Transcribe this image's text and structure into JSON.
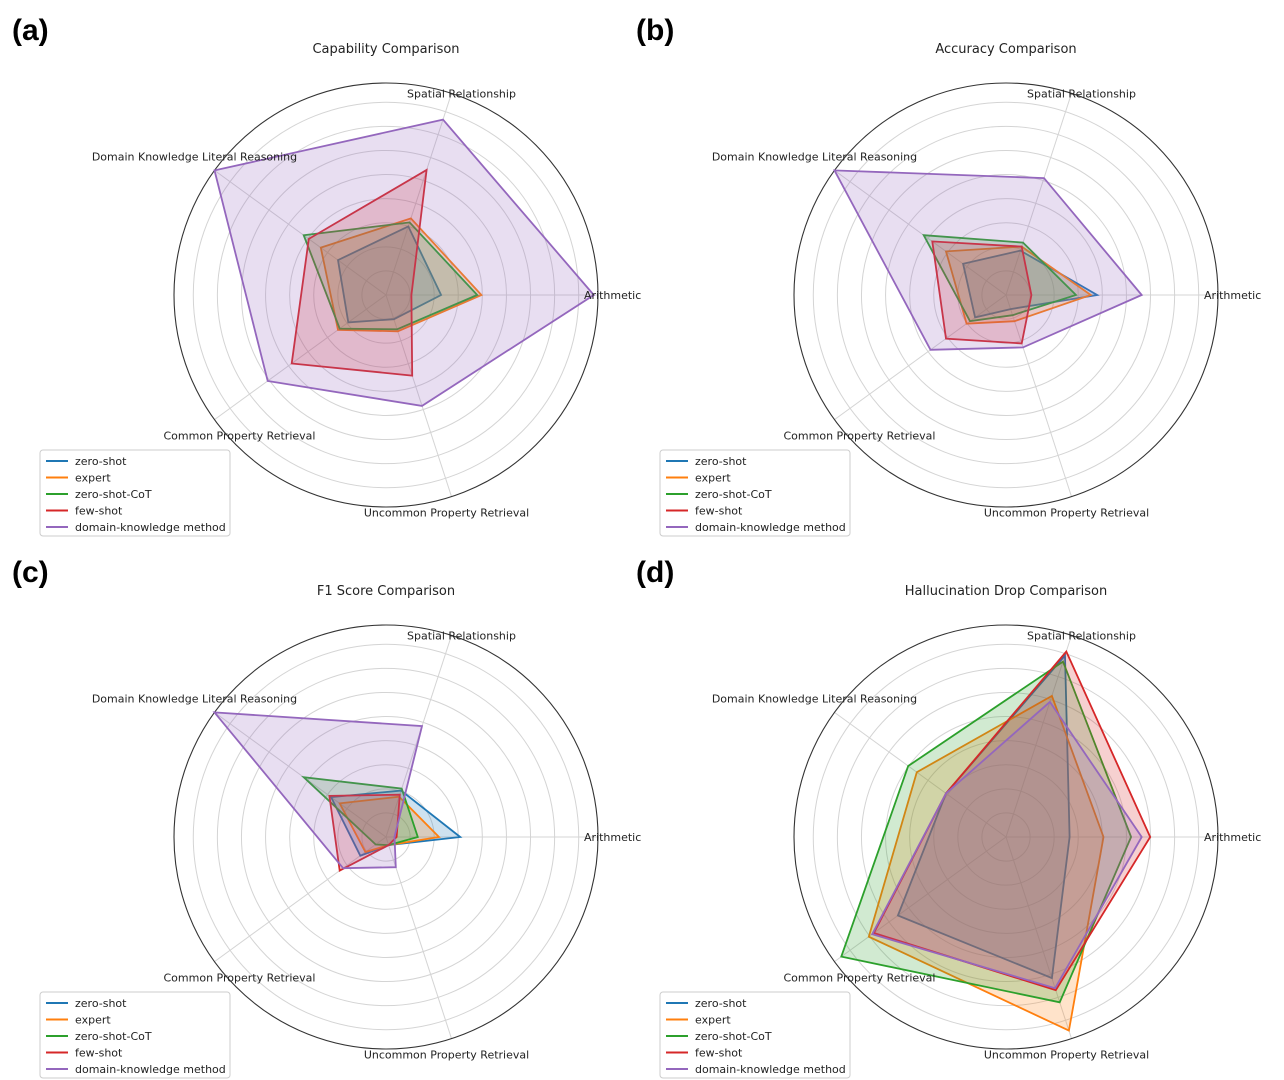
{
  "colors": {
    "zero-shot": "#1f77b4",
    "expert": "#ff7f0e",
    "zero-shot-CoT": "#2ca02c",
    "few-shot": "#d62728",
    "domain-knowledge method": "#9467bd"
  },
  "chart_data": [
    {
      "type": "radar",
      "panel_label": "(a)",
      "title": "Capability Comparison",
      "axes": [
        "Arithmetic",
        "Spatial Relationship",
        "Domain Knowledge Literal Reasoning",
        "Common Property Retrieval",
        "Uncommon Property Retrieval"
      ],
      "rlim": [
        0,
        1
      ],
      "grid": true,
      "legend_position": "lower-left",
      "series": [
        {
          "name": "zero-shot",
          "values": [
            0.26,
            0.34,
            0.28,
            0.22,
            0.12
          ]
        },
        {
          "name": "expert",
          "values": [
            0.45,
            0.38,
            0.38,
            0.28,
            0.18
          ]
        },
        {
          "name": "zero-shot-CoT",
          "values": [
            0.43,
            0.36,
            0.48,
            0.27,
            0.17
          ]
        },
        {
          "name": "few-shot",
          "values": [
            0.12,
            0.62,
            0.45,
            0.55,
            0.4
          ]
        },
        {
          "name": "domain-knowledge method",
          "values": [
            0.98,
            0.87,
            1.0,
            0.69,
            0.55
          ]
        }
      ]
    },
    {
      "type": "radar",
      "panel_label": "(b)",
      "title": "Accuracy Comparison",
      "axes": [
        "Arithmetic",
        "Spatial Relationship",
        "Domain Knowledge Literal Reasoning",
        "Common Property Retrieval",
        "Uncommon Property Retrieval"
      ],
      "rlim": [
        0,
        1
      ],
      "grid": true,
      "legend_position": "lower-left",
      "series": [
        {
          "name": "zero-shot",
          "values": [
            0.43,
            0.22,
            0.25,
            0.18,
            0.07
          ]
        },
        {
          "name": "expert",
          "values": [
            0.4,
            0.24,
            0.35,
            0.23,
            0.13
          ]
        },
        {
          "name": "zero-shot-CoT",
          "values": [
            0.33,
            0.26,
            0.48,
            0.21,
            0.1
          ]
        },
        {
          "name": "few-shot",
          "values": [
            0.12,
            0.24,
            0.43,
            0.35,
            0.24
          ]
        },
        {
          "name": "domain-knowledge method",
          "values": [
            0.64,
            0.58,
            1.0,
            0.44,
            0.26
          ]
        }
      ]
    },
    {
      "type": "radar",
      "panel_label": "(c)",
      "title": "F1 Score Comparison",
      "axes": [
        "Arithmetic",
        "Spatial Relationship",
        "Domain Knowledge Literal Reasoning",
        "Common Property Retrieval",
        "Uncommon Property Retrieval"
      ],
      "rlim": [
        0,
        1
      ],
      "grid": true,
      "legend_position": "lower-left",
      "series": [
        {
          "name": "zero-shot",
          "values": [
            0.35,
            0.23,
            0.32,
            0.15,
            0.04
          ]
        },
        {
          "name": "expert",
          "values": [
            0.25,
            0.2,
            0.27,
            0.12,
            0.04
          ]
        },
        {
          "name": "zero-shot-CoT",
          "values": [
            0.15,
            0.24,
            0.48,
            0.06,
            0.04
          ]
        },
        {
          "name": "few-shot",
          "values": [
            0.05,
            0.21,
            0.33,
            0.27,
            0.04
          ]
        },
        {
          "name": "domain-knowledge method",
          "values": [
            0.04,
            0.55,
            1.0,
            0.25,
            0.15
          ]
        }
      ]
    },
    {
      "type": "radar",
      "panel_label": "(d)",
      "title": "Hallucination Drop Comparison",
      "axes": [
        "Arithmetic",
        "Spatial Relationship",
        "Domain Knowledge Literal Reasoning",
        "Common Property Retrieval",
        "Uncommon Property Retrieval"
      ],
      "rlim": [
        0,
        1
      ],
      "grid": true,
      "legend_position": "lower-left",
      "series": [
        {
          "name": "zero-shot",
          "values": [
            0.3,
            0.9,
            0.35,
            0.63,
            0.7
          ]
        },
        {
          "name": "expert",
          "values": [
            0.46,
            0.7,
            0.52,
            0.8,
            0.96
          ]
        },
        {
          "name": "zero-shot-CoT",
          "values": [
            0.59,
            0.87,
            0.57,
            0.96,
            0.82
          ]
        },
        {
          "name": "few-shot",
          "values": [
            0.68,
            0.92,
            0.35,
            0.77,
            0.76
          ]
        },
        {
          "name": "domain-knowledge method",
          "values": [
            0.64,
            0.67,
            0.35,
            0.78,
            0.75
          ]
        }
      ]
    }
  ]
}
